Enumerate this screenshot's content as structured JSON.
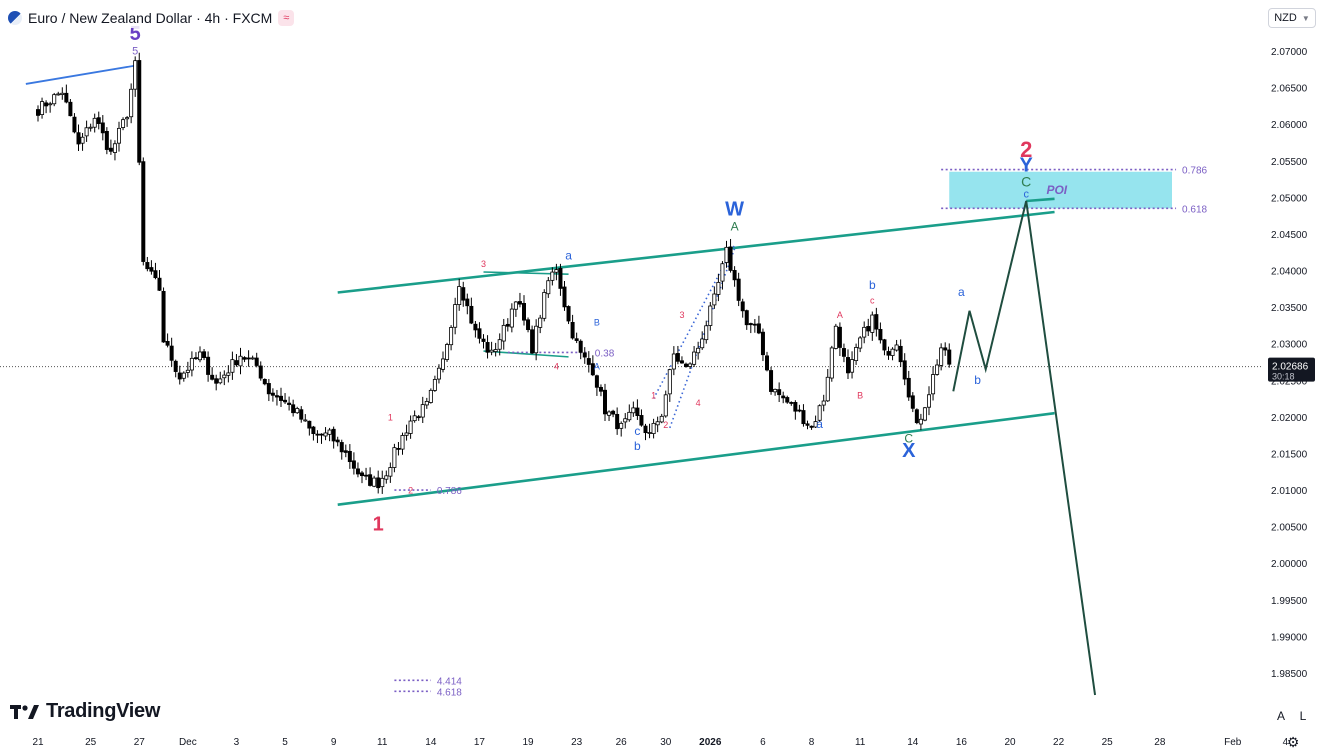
{
  "header": {
    "title": "Euro / New Zealand Dollar · 4h · FXCM",
    "symbol_icon": "euro-flag-icon",
    "indicator_icon": "wave-icon"
  },
  "currency_button": {
    "label": "NZD"
  },
  "brand": {
    "name": "TradingView",
    "icon": "tradingview-logo-icon"
  },
  "corner_buttons": {
    "auto": "A",
    "log": "L"
  },
  "colors": {
    "bull": "#ffffff",
    "bear": "#000000",
    "channel": "#1a9e8a",
    "projection": "#1f4d3f",
    "poi": "#96e4ee",
    "fib_label": "#7b5fc4",
    "wave_red": "#e0385e",
    "wave_blue": "#2b63d9",
    "wave_green": "#2e7d4f"
  },
  "chart_data": {
    "type": "candlestick",
    "symbol": "EURNZD",
    "interval": "4h",
    "exchange": "FXCM",
    "ylim": [
      1.978,
      2.0755
    ],
    "price_ticks": [
      "2.07000",
      "2.06500",
      "2.06000",
      "2.05500",
      "2.05000",
      "2.04500",
      "2.04000",
      "2.03500",
      "2.03000",
      "2.02500",
      "2.02000",
      "2.01500",
      "2.01000",
      "2.00500",
      "2.00000",
      "1.99500",
      "1.99000",
      "1.98500"
    ],
    "current_price": {
      "value": "2.02686",
      "countdown": "30:18"
    },
    "time_ticks": [
      {
        "i": 0,
        "label": "21"
      },
      {
        "i": 13,
        "label": "25"
      },
      {
        "i": 25,
        "label": "27"
      },
      {
        "i": 37,
        "label": "Dec"
      },
      {
        "i": 49,
        "label": "3"
      },
      {
        "i": 61,
        "label": "5"
      },
      {
        "i": 73,
        "label": "9"
      },
      {
        "i": 85,
        "label": "11"
      },
      {
        "i": 97,
        "label": "14"
      },
      {
        "i": 109,
        "label": "17"
      },
      {
        "i": 121,
        "label": "19"
      },
      {
        "i": 133,
        "label": "23"
      },
      {
        "i": 144,
        "label": "26"
      },
      {
        "i": 155,
        "label": "30"
      },
      {
        "i": 166,
        "label": "2026"
      },
      {
        "i": 179,
        "label": "6"
      },
      {
        "i": 191,
        "label": "8"
      },
      {
        "i": 203,
        "label": "11"
      },
      {
        "i": 216,
        "label": "14"
      },
      {
        "i": 228,
        "label": "16"
      },
      {
        "i": 240,
        "label": "20"
      },
      {
        "i": 252,
        "label": "22"
      },
      {
        "i": 264,
        "label": "25"
      },
      {
        "i": 277,
        "label": "28"
      },
      {
        "i": 295,
        "label": "Feb"
      },
      {
        "i": 308,
        "label": "4"
      }
    ],
    "anchors": [
      [
        0,
        2.062
      ],
      [
        6,
        2.0645
      ],
      [
        10,
        2.057
      ],
      [
        14,
        2.061
      ],
      [
        18,
        2.056
      ],
      [
        22,
        2.0615
      ],
      [
        24,
        2.068
      ],
      [
        25,
        2.0545
      ],
      [
        26,
        2.041
      ],
      [
        30,
        2.0375
      ],
      [
        31,
        2.0305
      ],
      [
        35,
        2.0255
      ],
      [
        40,
        2.0285
      ],
      [
        44,
        2.0245
      ],
      [
        50,
        2.0285
      ],
      [
        54,
        2.027
      ],
      [
        57,
        2.0235
      ],
      [
        60,
        2.0225
      ],
      [
        64,
        2.0205
      ],
      [
        68,
        2.0175
      ],
      [
        72,
        2.0175
      ],
      [
        76,
        2.015
      ],
      [
        80,
        2.0115
      ],
      [
        84,
        2.011
      ],
      [
        86,
        2.0125
      ],
      [
        88,
        2.015
      ],
      [
        92,
        2.0195
      ],
      [
        96,
        2.0215
      ],
      [
        100,
        2.0275
      ],
      [
        104,
        2.0385
      ],
      [
        108,
        2.0315
      ],
      [
        112,
        2.0285
      ],
      [
        116,
        2.033
      ],
      [
        118,
        2.0365
      ],
      [
        122,
        2.0295
      ],
      [
        126,
        2.0385
      ],
      [
        128,
        2.0405
      ],
      [
        131,
        2.033
      ],
      [
        134,
        2.0285
      ],
      [
        137,
        2.0265
      ],
      [
        140,
        2.021
      ],
      [
        144,
        2.0185
      ],
      [
        147,
        2.0205
      ],
      [
        151,
        2.0175
      ],
      [
        154,
        2.0205
      ],
      [
        157,
        2.0285
      ],
      [
        160,
        2.0265
      ],
      [
        163,
        2.0295
      ],
      [
        167,
        2.036
      ],
      [
        170,
        2.0425
      ],
      [
        172,
        2.0385
      ],
      [
        175,
        2.0325
      ],
      [
        178,
        2.0315
      ],
      [
        181,
        2.024
      ],
      [
        184,
        2.0225
      ],
      [
        188,
        2.0205
      ],
      [
        191,
        2.0185
      ],
      [
        194,
        2.0225
      ],
      [
        197,
        2.0325
      ],
      [
        200,
        2.0255
      ],
      [
        203,
        2.0305
      ],
      [
        206,
        2.0335
      ],
      [
        209,
        2.0285
      ],
      [
        212,
        2.0305
      ],
      [
        215,
        2.0235
      ],
      [
        217,
        2.0185
      ],
      [
        220,
        2.0235
      ],
      [
        223,
        2.0295
      ],
      [
        225,
        2.0272
      ]
    ],
    "projection_path": [
      [
        226,
        2.0235
      ],
      [
        230,
        2.0345
      ],
      [
        234,
        2.0265
      ],
      [
        244,
        2.0495
      ],
      [
        261,
        1.982
      ]
    ],
    "channel_lines": [
      {
        "from": [
          74,
          2.037
        ],
        "to": [
          251,
          2.048
        ]
      },
      {
        "from": [
          74,
          2.008
        ],
        "to": [
          251,
          2.0205
        ]
      },
      {
        "from": [
          -3,
          2.0655
        ],
        "to": [
          24,
          2.068
        ]
      },
      {
        "from": [
          244,
          2.0495
        ],
        "to": [
          251,
          2.0498
        ]
      }
    ],
    "short_lines": [
      {
        "from": [
          110,
          2.0398
        ],
        "to": [
          131,
          2.0395
        ]
      },
      {
        "from": [
          110,
          2.029
        ],
        "to": [
          131,
          2.0282
        ]
      }
    ],
    "poi_zone": {
      "x_start": 225,
      "x_end": 280,
      "top": 2.0535,
      "bottom": 2.0485,
      "label": "POI"
    },
    "fib_lines": [
      {
        "x_start": 223,
        "x_end": 281,
        "y": 2.0538,
        "label": "0.786"
      },
      {
        "x_start": 223,
        "x_end": 281,
        "y": 2.0485,
        "label": "0.618"
      },
      {
        "x_start": 88,
        "x_end": 97,
        "y": 2.01,
        "label": "0.786"
      },
      {
        "x_start": 116,
        "x_end": 136,
        "y": 2.0288,
        "label": "0.38"
      },
      {
        "x_start": 88,
        "x_end": 97,
        "y": 1.984,
        "label": "4.414"
      },
      {
        "x_start": 88,
        "x_end": 97,
        "y": 1.9825,
        "label": "4.618"
      }
    ],
    "dotted_lines": [
      {
        "from": [
          152,
          2.0225
        ],
        "to": [
          172,
          2.0435
        ]
      },
      {
        "from": [
          156,
          2.0185
        ],
        "to": [
          172,
          2.043
        ]
      }
    ],
    "wave_labels": [
      {
        "text": "5",
        "i": 24,
        "price": 2.0715,
        "color": "#6a3fc4",
        "size": 20
      },
      {
        "text": "5",
        "i": 24,
        "price": 2.0695,
        "color": "#7b5fc4",
        "size": 11
      },
      {
        "text": "1",
        "i": 84,
        "price": 2.0045,
        "color": "#e0385e",
        "size": 20
      },
      {
        "text": "1",
        "i": 87,
        "price": 2.0195,
        "color": "#e0385e",
        "size": 9
      },
      {
        "text": "2",
        "i": 92,
        "price": 2.0095,
        "color": "#e0385e",
        "size": 9
      },
      {
        "text": "3",
        "i": 110,
        "price": 2.0405,
        "color": "#e0385e",
        "size": 9
      },
      {
        "text": "4",
        "i": 128,
        "price": 2.0265,
        "color": "#e0385e",
        "size": 9
      },
      {
        "text": "a",
        "i": 131,
        "price": 2.0415,
        "color": "#2b63d9",
        "size": 12
      },
      {
        "text": "B",
        "i": 138,
        "price": 2.0325,
        "color": "#2b63d9",
        "size": 9
      },
      {
        "text": "A",
        "i": 138,
        "price": 2.0265,
        "color": "#2b63d9",
        "size": 9
      },
      {
        "text": "c",
        "i": 148,
        "price": 2.0175,
        "color": "#2b63d9",
        "size": 12
      },
      {
        "text": "b",
        "i": 148,
        "price": 2.0155,
        "color": "#2b63d9",
        "size": 12
      },
      {
        "text": "1",
        "i": 152,
        "price": 2.0225,
        "color": "#e0385e",
        "size": 9
      },
      {
        "text": "2",
        "i": 155,
        "price": 2.0185,
        "color": "#e0385e",
        "size": 9
      },
      {
        "text": "3",
        "i": 159,
        "price": 2.0335,
        "color": "#e0385e",
        "size": 9
      },
      {
        "text": "4",
        "i": 163,
        "price": 2.0215,
        "color": "#e0385e",
        "size": 9
      },
      {
        "text": "W",
        "i": 172,
        "price": 2.0475,
        "color": "#2b63d9",
        "size": 20
      },
      {
        "text": "A",
        "i": 172,
        "price": 2.0455,
        "color": "#2e7d4f",
        "size": 12
      },
      {
        "text": "b",
        "i": 206,
        "price": 2.0375,
        "color": "#2b63d9",
        "size": 12
      },
      {
        "text": "c",
        "i": 206,
        "price": 2.0355,
        "color": "#e0385e",
        "size": 9
      },
      {
        "text": "A",
        "i": 198,
        "price": 2.0335,
        "color": "#e0385e",
        "size": 9
      },
      {
        "text": "B",
        "i": 203,
        "price": 2.0225,
        "color": "#e0385e",
        "size": 9
      },
      {
        "text": "a",
        "i": 193,
        "price": 2.0185,
        "color": "#2b63d9",
        "size": 12
      },
      {
        "text": "C",
        "i": 215,
        "price": 2.0165,
        "color": "#2e7d4f",
        "size": 12
      },
      {
        "text": "X",
        "i": 215,
        "price": 2.0145,
        "color": "#2b63d9",
        "size": 20
      },
      {
        "text": "a",
        "i": 228,
        "price": 2.0365,
        "color": "#2b63d9",
        "size": 12
      },
      {
        "text": "b",
        "i": 232,
        "price": 2.0245,
        "color": "#2b63d9",
        "size": 12
      },
      {
        "text": "2",
        "i": 244,
        "price": 2.0555,
        "color": "#e0385e",
        "size": 22
      },
      {
        "text": "Y",
        "i": 244,
        "price": 2.0535,
        "color": "#2b63d9",
        "size": 20
      },
      {
        "text": "C",
        "i": 244,
        "price": 2.0515,
        "color": "#2e7d4f",
        "size": 14
      },
      {
        "text": "c",
        "i": 244,
        "price": 2.05,
        "color": "#2b63d9",
        "size": 11
      }
    ]
  }
}
